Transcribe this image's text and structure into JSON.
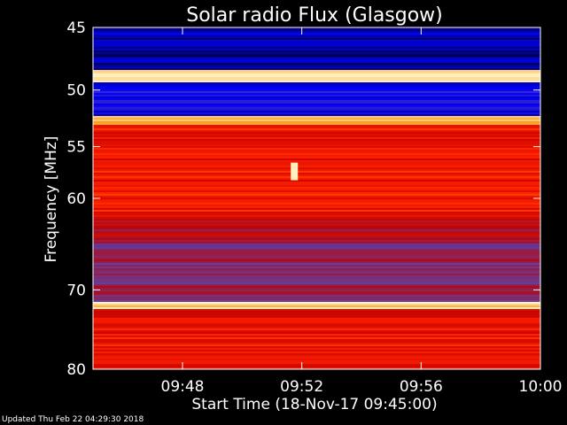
{
  "chart_data": {
    "type": "heatmap",
    "title": "Solar radio Flux (Glasgow)",
    "xlabel": "Start Time (18-Nov-17 09:45:00)",
    "ylabel": "Frequency [MHz]",
    "x_range": [
      "09:45",
      "10:00"
    ],
    "x_ticks": [
      "09:48",
      "09:52",
      "09:56",
      "10:00"
    ],
    "y_range": [
      45,
      80
    ],
    "y_scale": "log",
    "y_ticks": [
      45,
      50,
      55,
      60,
      70,
      80
    ],
    "colormap": [
      "#000033",
      "#0000ff",
      "#6040a0",
      "#c00000",
      "#ff2000",
      "#ff9000",
      "#fff0c0"
    ],
    "bands": [
      {
        "fmin": 45.0,
        "fmax": 48.3,
        "level": 0.08
      },
      {
        "fmin": 48.3,
        "fmax": 49.3,
        "level": 0.98
      },
      {
        "fmin": 49.3,
        "fmax": 52.3,
        "level": 0.18
      },
      {
        "fmin": 52.3,
        "fmax": 53.0,
        "level": 0.9
      },
      {
        "fmin": 53.0,
        "fmax": 62.0,
        "level": 0.62
      },
      {
        "fmin": 62.0,
        "fmax": 64.0,
        "level": 0.5
      },
      {
        "fmin": 64.0,
        "fmax": 71.5,
        "level": 0.4
      },
      {
        "fmin": 71.5,
        "fmax": 72.3,
        "level": 0.98
      },
      {
        "fmin": 72.3,
        "fmax": 80.0,
        "level": 0.6
      }
    ],
    "burst": {
      "time": "09:51:45",
      "fmin": 56.5,
      "fmax": 58.2,
      "level": 1.0
    }
  },
  "footer": "Updated Thu Feb 22 04:29:30 2018",
  "colors": {
    "background": "#000000",
    "text": "#ffffff"
  }
}
